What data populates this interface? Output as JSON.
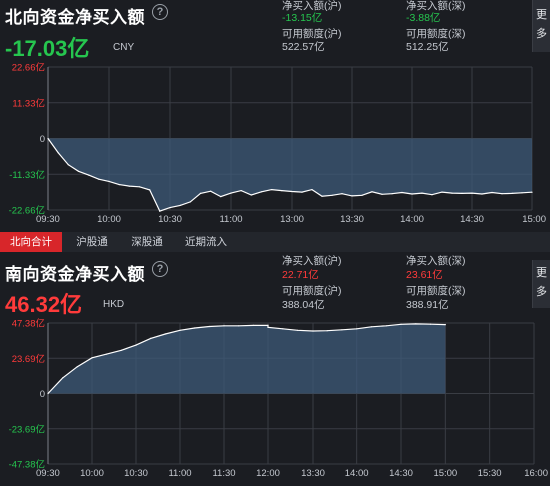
{
  "north": {
    "title": "北向资金净买入额",
    "value": "-17.03亿",
    "currency": "CNY",
    "stats": [
      {
        "label": "净买入额(沪)",
        "value": "-13.15亿",
        "sign": "neg"
      },
      {
        "label": "净买入额(深)",
        "value": "-3.88亿",
        "sign": "neg"
      },
      {
        "label": "可用额度(沪)",
        "value": "522.57亿",
        "sign": "neutral"
      },
      {
        "label": "可用额度(深)",
        "value": "512.25亿",
        "sign": "neutral"
      }
    ],
    "more": "更多"
  },
  "tabs": [
    "北向合计",
    "沪股通",
    "深股通",
    "近期流入"
  ],
  "south": {
    "title": "南向资金净买入额",
    "value": "46.32亿",
    "currency": "HKD",
    "stats": [
      {
        "label": "净买入额(沪)",
        "value": "22.71亿",
        "sign": "pos"
      },
      {
        "label": "净买入额(深)",
        "value": "23.61亿",
        "sign": "pos"
      },
      {
        "label": "可用额度(沪)",
        "value": "388.04亿",
        "sign": "neutral"
      },
      {
        "label": "可用额度(深)",
        "value": "388.91亿",
        "sign": "neutral"
      }
    ],
    "more": "更多"
  },
  "colors": {
    "up": "#ff3b3b",
    "down": "#26c64f",
    "line": "#ffffff",
    "fill": "#3e5a78",
    "grid": "#3a3d44"
  },
  "chart_data": [
    {
      "type": "area",
      "ylim": [
        -22.66,
        22.66
      ],
      "yticks": [
        "22.66亿",
        "11.33亿",
        "0",
        "-11.33亿",
        "-22.66亿"
      ],
      "xticks": [
        "09:30",
        "10:00",
        "10:30",
        "11:00",
        "13:00",
        "13:30",
        "14:00",
        "14:30",
        "15:00"
      ],
      "x": [
        "09:30",
        "09:35",
        "09:40",
        "09:45",
        "09:50",
        "09:55",
        "10:00",
        "10:05",
        "10:10",
        "10:15",
        "10:20",
        "10:25",
        "10:30",
        "10:35",
        "10:40",
        "10:45",
        "10:50",
        "10:55",
        "11:00",
        "11:05",
        "11:10",
        "11:15",
        "11:20",
        "11:25",
        "11:30",
        "13:05",
        "13:10",
        "13:15",
        "13:20",
        "13:25",
        "13:30",
        "13:35",
        "13:40",
        "13:45",
        "13:50",
        "13:55",
        "14:00",
        "14:05",
        "14:10",
        "14:15",
        "14:20",
        "14:25",
        "14:30",
        "14:35",
        "14:40",
        "14:45",
        "14:50",
        "14:55",
        "15:00"
      ],
      "values": [
        0,
        -4.5,
        -8.3,
        -10.4,
        -11.6,
        -12.9,
        -13.6,
        -14.6,
        -15.1,
        -15.3,
        -16.3,
        -23.0,
        -21.9,
        -21.2,
        -20.1,
        -17.4,
        -16.7,
        -18.4,
        -17.3,
        -16.5,
        -17.9,
        -16.9,
        -16.2,
        -16.5,
        -16.8,
        -17.0,
        -16.2,
        -18.3,
        -18.0,
        -17.5,
        -18.2,
        -18.0,
        -16.9,
        -17.7,
        -17.5,
        -17.1,
        -17.6,
        -17.3,
        -17.8,
        -17.0,
        -17.3,
        -17.4,
        -17.3,
        -17.6,
        -17.1,
        -17.5,
        -17.4,
        -17.2,
        -17.03
      ]
    },
    {
      "type": "area",
      "ylim": [
        -47.38,
        47.38
      ],
      "yticks": [
        "47.38亿",
        "23.69亿",
        "0",
        "-23.69亿",
        "-47.38亿"
      ],
      "xticks": [
        "09:30",
        "10:00",
        "10:30",
        "11:00",
        "11:30",
        "12:00",
        "13:30",
        "14:00",
        "14:30",
        "15:00",
        "15:30",
        "16:00"
      ],
      "x": [
        "09:30",
        "09:40",
        "09:50",
        "10:00",
        "10:10",
        "10:20",
        "10:30",
        "10:40",
        "10:50",
        "11:00",
        "11:10",
        "11:20",
        "11:30",
        "11:40",
        "11:50",
        "12:00",
        "13:00",
        "13:10",
        "13:20",
        "13:30",
        "13:40",
        "13:50",
        "14:00",
        "14:10",
        "14:20",
        "14:30",
        "14:40",
        "14:50",
        "15:00"
      ],
      "values": [
        0,
        10.5,
        18.0,
        24.0,
        26.5,
        29.0,
        32.5,
        37.0,
        40.0,
        42.5,
        44.0,
        45.0,
        45.5,
        45.5,
        45.8,
        45.8,
        44.5,
        43.5,
        42.5,
        42.0,
        42.2,
        42.8,
        43.5,
        44.8,
        45.5,
        46.5,
        46.8,
        46.6,
        46.32
      ]
    }
  ]
}
